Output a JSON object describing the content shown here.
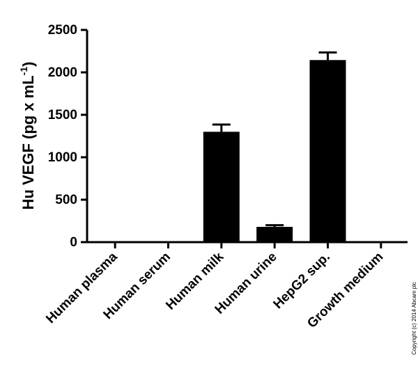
{
  "chart_data": {
    "type": "bar",
    "y_label": {
      "text": "Hu VEGF (pg x mL",
      "superscript": "-1",
      "suffix": ")"
    },
    "categories": [
      "Human plasma",
      "Human serum",
      "Human milk",
      "Human urine",
      "HepG2 sup.",
      "Growth medium"
    ],
    "values": [
      0,
      0,
      1300,
      180,
      2145,
      0
    ],
    "errors": [
      0,
      0,
      85,
      20,
      90,
      0
    ],
    "color": "#000000",
    "ylim": [
      0,
      2500
    ],
    "yticks": [
      0,
      500,
      1000,
      1500,
      2000,
      2500
    ],
    "annotation": "Copyright (c) 2014 Abcam plc"
  }
}
